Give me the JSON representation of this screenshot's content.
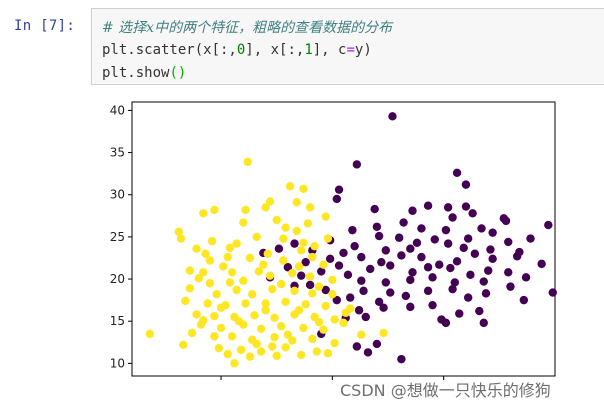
{
  "cell": {
    "prompt": "In  [7]:",
    "comment": "# 选择x中的两个特征，粗略的查看数据的分布",
    "line2": {
      "prefix": "plt.scatter(x[:,",
      "n0": "0",
      "mid": "], x[:,",
      "n1": "1",
      "mid2": "], c",
      "eq": "=",
      "suffix": "y)"
    },
    "line3": {
      "prefix": "plt.show",
      "paren": "()"
    }
  },
  "watermark": "CSDN @想做一只快乐的修狗",
  "chart_data": {
    "type": "scatter",
    "xlim": [
      6,
      25
    ],
    "ylim": [
      8.5,
      41
    ],
    "xticks": [
      "10",
      "15",
      "20"
    ],
    "yticks": [
      "10",
      "15",
      "20",
      "25",
      "30",
      "35",
      "40"
    ],
    "colors": {
      "class0": "#440154",
      "class1": "#fde725"
    },
    "series": [
      {
        "values": [
          [
            17.7,
            39.3
          ],
          [
            16.1,
            33.6
          ],
          [
            20.6,
            32.6
          ],
          [
            21.0,
            31.2
          ],
          [
            15.3,
            30.6
          ],
          [
            15.2,
            29.5
          ],
          [
            16.9,
            28.3
          ],
          [
            19.3,
            28.7
          ],
          [
            20.2,
            28.5
          ],
          [
            18.6,
            28.1
          ],
          [
            21.0,
            28.6
          ],
          [
            20.4,
            27.3
          ],
          [
            21.3,
            27.8
          ],
          [
            22.7,
            27.2
          ],
          [
            22.8,
            26.9
          ],
          [
            24.7,
            26.4
          ],
          [
            21.7,
            26.0
          ],
          [
            23.9,
            24.8
          ],
          [
            22.9,
            24.4
          ],
          [
            20.2,
            24.2
          ],
          [
            17.1,
            25.1
          ],
          [
            18.0,
            24.9
          ],
          [
            18.8,
            24.3
          ],
          [
            19.6,
            24.7
          ],
          [
            20.9,
            23.7
          ],
          [
            21.4,
            23.0
          ],
          [
            22.1,
            23.5
          ],
          [
            22.2,
            22.4
          ],
          [
            23.4,
            23.2
          ],
          [
            23.3,
            22.7
          ],
          [
            24.4,
            21.8
          ],
          [
            19.8,
            21.7
          ],
          [
            18.1,
            22.8
          ],
          [
            17.2,
            22.0
          ],
          [
            16.3,
            22.6
          ],
          [
            16.7,
            21.2
          ],
          [
            17.6,
            21.6
          ],
          [
            18.6,
            20.8
          ],
          [
            19.3,
            21.4
          ],
          [
            20.3,
            21.3
          ],
          [
            21.2,
            20.5
          ],
          [
            22.0,
            21.0
          ],
          [
            22.9,
            20.8
          ],
          [
            23.7,
            20.2
          ],
          [
            21.8,
            19.7
          ],
          [
            20.5,
            19.6
          ],
          [
            19.5,
            20.2
          ],
          [
            18.5,
            19.9
          ],
          [
            17.4,
            19.6
          ],
          [
            16.3,
            19.8
          ],
          [
            15.7,
            20.5
          ],
          [
            15.3,
            21.6
          ],
          [
            14.5,
            20.9
          ],
          [
            14.9,
            22.4
          ],
          [
            15.5,
            23.1
          ],
          [
            16.0,
            23.9
          ],
          [
            14.9,
            24.6
          ],
          [
            17.4,
            23.4
          ],
          [
            18.5,
            23.6
          ],
          [
            19.0,
            22.6
          ],
          [
            20.6,
            22.1
          ],
          [
            23.0,
            19.1
          ],
          [
            24.9,
            18.4
          ],
          [
            23.6,
            17.5
          ],
          [
            21.9,
            18.3
          ],
          [
            21.1,
            17.8
          ],
          [
            20.4,
            18.8
          ],
          [
            19.3,
            18.6
          ],
          [
            18.3,
            18.0
          ],
          [
            17.6,
            18.4
          ],
          [
            17.1,
            17.3
          ],
          [
            16.4,
            18.6
          ],
          [
            15.8,
            17.8
          ],
          [
            15.2,
            17.5
          ],
          [
            14.7,
            18.7
          ],
          [
            16.2,
            16.3
          ],
          [
            17.3,
            16.6
          ],
          [
            18.5,
            16.7
          ],
          [
            19.5,
            16.9
          ],
          [
            20.7,
            15.9
          ],
          [
            21.6,
            16.2
          ],
          [
            19.9,
            15.2
          ],
          [
            20.1,
            14.8
          ],
          [
            21.8,
            14.8
          ],
          [
            16.5,
            15.5
          ],
          [
            15.6,
            15.4
          ],
          [
            16.6,
            11.3
          ],
          [
            17.0,
            12.3
          ],
          [
            16.1,
            12.0
          ],
          [
            14.5,
            13.5
          ],
          [
            18.1,
            10.5
          ],
          [
            13.8,
            22.0
          ],
          [
            14.1,
            23.4
          ],
          [
            13.3,
            24.2
          ],
          [
            12.6,
            23.6
          ],
          [
            11.9,
            23.1
          ],
          [
            13.0,
            21.4
          ],
          [
            12.2,
            20.2
          ],
          [
            13.3,
            19.2
          ],
          [
            15.9,
            25.8
          ],
          [
            17.0,
            26.2
          ],
          [
            18.2,
            26.7
          ],
          [
            19.0,
            26.0
          ],
          [
            20.1,
            25.8
          ],
          [
            21.1,
            24.8
          ],
          [
            22.2,
            25.5
          ],
          [
            13.6,
            20.4
          ],
          [
            14.0,
            19.3
          ]
        ]
      },
      {
        "values": [
          [
            11.2,
            33.9
          ],
          [
            12.2,
            29.2
          ],
          [
            13.4,
            29.1
          ],
          [
            13.7,
            30.7
          ],
          [
            12.0,
            28.5
          ],
          [
            11.1,
            28.2
          ],
          [
            9.7,
            28.2
          ],
          [
            9.2,
            27.8
          ],
          [
            12.5,
            27.0
          ],
          [
            14.0,
            28.5
          ],
          [
            14.7,
            27.4
          ],
          [
            8.1,
            25.6
          ],
          [
            8.2,
            24.8
          ],
          [
            9.6,
            24.5
          ],
          [
            10.7,
            24.2
          ],
          [
            11.6,
            25.0
          ],
          [
            12.8,
            24.8
          ],
          [
            13.4,
            25.7
          ],
          [
            13.7,
            24.3
          ],
          [
            14.8,
            24.8
          ],
          [
            9.3,
            23.0
          ],
          [
            10.3,
            22.6
          ],
          [
            11.3,
            22.5
          ],
          [
            11.9,
            21.7
          ],
          [
            12.8,
            22.2
          ],
          [
            14.1,
            22.6
          ],
          [
            14.6,
            21.7
          ],
          [
            8.6,
            21.0
          ],
          [
            9.2,
            20.8
          ],
          [
            10.5,
            20.8
          ],
          [
            11.0,
            19.8
          ],
          [
            12.2,
            20.4
          ],
          [
            13.2,
            20.7
          ],
          [
            14.0,
            20.3
          ],
          [
            15.0,
            19.9
          ],
          [
            8.6,
            18.9
          ],
          [
            9.5,
            19.5
          ],
          [
            9.8,
            18.2
          ],
          [
            10.7,
            18.7
          ],
          [
            11.4,
            18.2
          ],
          [
            12.3,
            18.8
          ],
          [
            13.3,
            18.6
          ],
          [
            14.1,
            18.3
          ],
          [
            15.0,
            18.2
          ],
          [
            8.4,
            17.4
          ],
          [
            9.4,
            17.1
          ],
          [
            10.2,
            16.9
          ],
          [
            11.1,
            17.1
          ],
          [
            12.0,
            17.1
          ],
          [
            12.9,
            17.3
          ],
          [
            13.8,
            17.0
          ],
          [
            14.7,
            16.8
          ],
          [
            8.9,
            15.8
          ],
          [
            9.7,
            15.6
          ],
          [
            10.6,
            15.5
          ],
          [
            11.5,
            15.7
          ],
          [
            12.4,
            15.4
          ],
          [
            13.3,
            15.8
          ],
          [
            14.2,
            15.5
          ],
          [
            15.1,
            15.2
          ],
          [
            9.1,
            14.6
          ],
          [
            10.0,
            14.2
          ],
          [
            11.0,
            14.6
          ],
          [
            11.8,
            14.1
          ],
          [
            12.7,
            14.4
          ],
          [
            13.7,
            14.2
          ],
          [
            14.6,
            14.0
          ],
          [
            6.8,
            13.5
          ],
          [
            8.7,
            13.6
          ],
          [
            9.7,
            13.2
          ],
          [
            10.5,
            13.2
          ],
          [
            11.4,
            12.8
          ],
          [
            12.4,
            13.1
          ],
          [
            13.2,
            12.7
          ],
          [
            14.1,
            12.9
          ],
          [
            15.1,
            12.4
          ],
          [
            8.3,
            12.2
          ],
          [
            9.9,
            11.8
          ],
          [
            10.9,
            11.6
          ],
          [
            11.8,
            11.4
          ],
          [
            12.9,
            11.9
          ],
          [
            14.3,
            11.4
          ],
          [
            11.3,
            10.8
          ],
          [
            12.5,
            10.9
          ],
          [
            13.6,
            11.0
          ],
          [
            14.8,
            11.2
          ],
          [
            10.6,
            10.0
          ],
          [
            15.5,
            14.8
          ],
          [
            15.6,
            16.0
          ],
          [
            15.8,
            16.5
          ],
          [
            10.4,
            23.7
          ],
          [
            12.1,
            23.0
          ],
          [
            13.6,
            23.4
          ],
          [
            10.1,
            21.5
          ],
          [
            11.7,
            20.9
          ],
          [
            13.5,
            21.5
          ],
          [
            9.0,
            20.1
          ],
          [
            10.4,
            19.6
          ],
          [
            12.7,
            19.4
          ],
          [
            14.4,
            19.1
          ],
          [
            11.0,
            26.7
          ],
          [
            12.9,
            26.1
          ],
          [
            13.9,
            26.6
          ],
          [
            10.8,
            15.0
          ],
          [
            12.0,
            16.3
          ],
          [
            13.5,
            16.3
          ],
          [
            11.6,
            12.3
          ],
          [
            10.3,
            11.1
          ],
          [
            9.2,
            15.1
          ],
          [
            13.0,
            13.4
          ],
          [
            14.4,
            14.9
          ],
          [
            12.3,
            12.0
          ],
          [
            10.0,
            16.6
          ],
          [
            9.5,
            22.2
          ],
          [
            13.1,
            31.0
          ],
          [
            14.2,
            23.9
          ],
          [
            8.9,
            23.6
          ],
          [
            17.3,
            13.6
          ],
          [
            16.3,
            13.4
          ]
        ]
      }
    ]
  }
}
